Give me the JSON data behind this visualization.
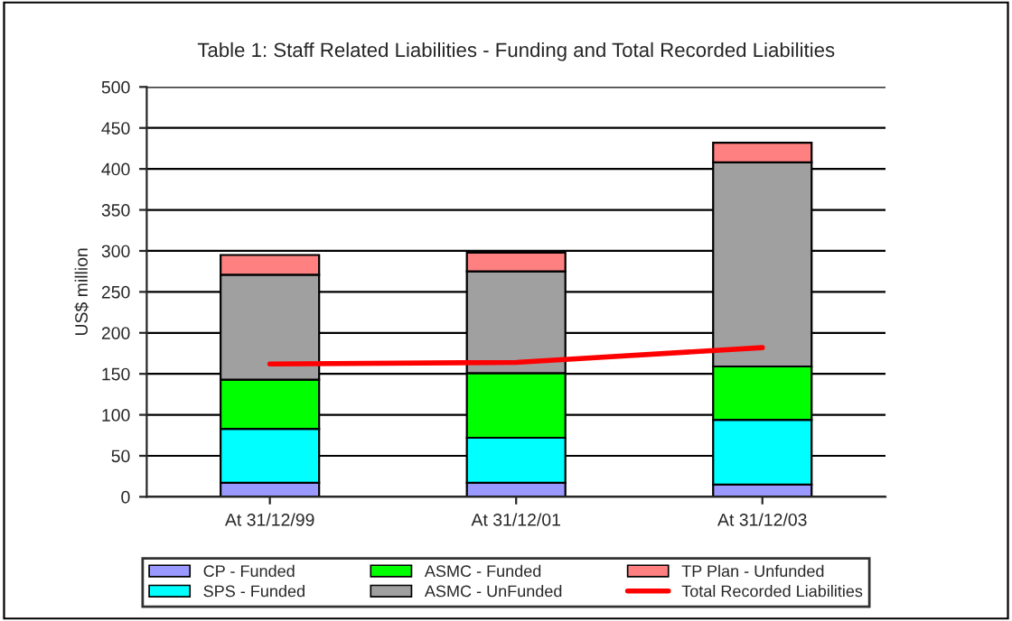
{
  "chart_data": {
    "type": "bar",
    "title": "Table 1: Staff Related Liabilities - Funding and Total Recorded Liabilities",
    "ylabel": "US$ million",
    "categories": [
      "At 31/12/99",
      "At 31/12/01",
      "At 31/12/03"
    ],
    "stacked": true,
    "series": [
      {
        "name": "CP - Funded",
        "color": "#9999ff",
        "values": [
          17,
          17,
          15
        ]
      },
      {
        "name": "SPS - Funded",
        "color": "#00ffff",
        "values": [
          66,
          55,
          79
        ]
      },
      {
        "name": "ASMC - Funded",
        "color": "#00ff00",
        "values": [
          60,
          79,
          65
        ]
      },
      {
        "name": "ASMC - UnFunded",
        "color": "#a0a0a0",
        "values": [
          128,
          124,
          249
        ]
      },
      {
        "name": "TP Plan - Unfunded",
        "color": "#ff8080",
        "values": [
          24,
          23,
          24
        ]
      },
      {
        "name": "Total Recorded Liabilities",
        "type": "line",
        "color": "#ff0000",
        "values": [
          162,
          164,
          182
        ]
      }
    ],
    "ylim": [
      0,
      500
    ],
    "yticks": [
      0,
      50,
      100,
      150,
      200,
      250,
      300,
      350,
      400,
      450,
      500
    ],
    "grid": "y",
    "legend": "bottom"
  }
}
